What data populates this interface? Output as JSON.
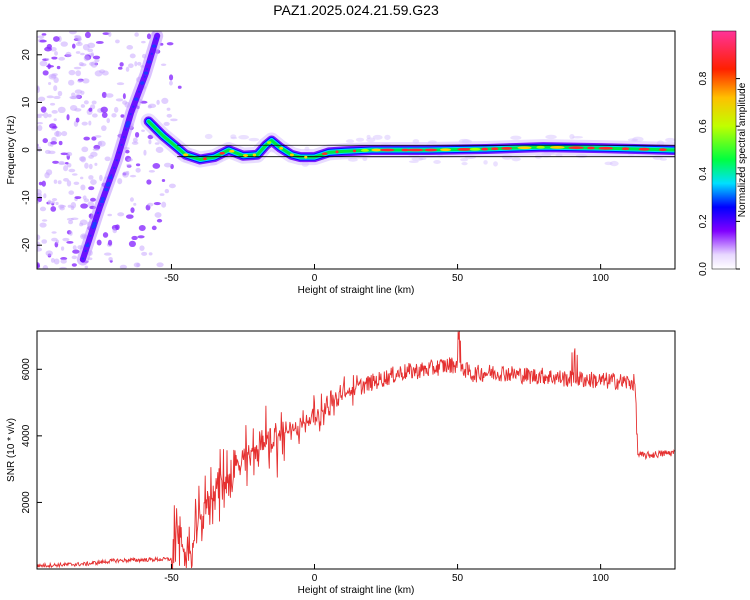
{
  "chart_data": [
    {
      "type": "heatmap",
      "title": "PAZ1.2025.024.21.59.G23",
      "xlabel": "Height of straight line (km)",
      "ylabel": "Frequency (Hz)",
      "xlim": [
        -97,
        126
      ],
      "ylim": [
        -25,
        25
      ],
      "xticks": [
        -50,
        0,
        50,
        100
      ],
      "yticks": [
        -20,
        -10,
        0,
        10,
        20
      ],
      "colorbar": {
        "label": "Normalized spectral amplitude",
        "range": [
          0,
          1
        ],
        "ticks": [
          "0.0",
          "0.2",
          "0.4",
          "0.6",
          "0.8"
        ],
        "colormap": "rainbow"
      },
      "traces": [
        {
          "description": "steep low-altitude trace",
          "points": [
            [
              -81,
              -23
            ],
            [
              -75,
              -12
            ],
            [
              -69,
              -2
            ],
            [
              -64,
              8
            ],
            [
              -59,
              16
            ],
            [
              -55,
              24
            ]
          ]
        },
        {
          "description": "main signal near 0 Hz",
          "points": [
            [
              -58,
              6
            ],
            [
              -53,
              3
            ],
            [
              -49,
              1
            ],
            [
              -45,
              -1
            ],
            [
              -40,
              -2
            ],
            [
              -35,
              -1.5
            ],
            [
              -30,
              0
            ],
            [
              -25,
              -1.2
            ],
            [
              -20,
              -1
            ],
            [
              -17,
              1
            ],
            [
              -15,
              2
            ],
            [
              -12,
              0.5
            ],
            [
              -8,
              -1
            ],
            [
              -5,
              -1.5
            ],
            [
              0,
              -1.5
            ],
            [
              5,
              -0.5
            ],
            [
              10,
              -0.3
            ],
            [
              20,
              0
            ],
            [
              40,
              0
            ],
            [
              60,
              0.2
            ],
            [
              80,
              0.6
            ],
            [
              100,
              0.4
            ],
            [
              126,
              0
            ]
          ]
        }
      ]
    },
    {
      "type": "line",
      "xlabel": "Height of straight line (km)",
      "ylabel": "SNR (10 * v/v)",
      "xlim": [
        -97,
        126
      ],
      "ylim": [
        0,
        7150
      ],
      "xticks": [
        -50,
        0,
        50,
        100
      ],
      "yticks": [
        2000,
        4000,
        6000
      ],
      "color": "#e53030",
      "envelope": [
        [
          -97,
          100
        ],
        [
          -80,
          150
        ],
        [
          -70,
          250
        ],
        [
          -50,
          300
        ],
        [
          -48,
          1200
        ],
        [
          -46,
          700
        ],
        [
          -44,
          200
        ],
        [
          -40,
          1500
        ],
        [
          -35,
          2400
        ],
        [
          -30,
          2800
        ],
        [
          -25,
          3200
        ],
        [
          -20,
          3700
        ],
        [
          -15,
          3900
        ],
        [
          -10,
          4100
        ],
        [
          -5,
          4300
        ],
        [
          0,
          4600
        ],
        [
          5,
          4900
        ],
        [
          10,
          5200
        ],
        [
          15,
          5450
        ],
        [
          20,
          5600
        ],
        [
          25,
          5750
        ],
        [
          30,
          5900
        ],
        [
          35,
          5950
        ],
        [
          40,
          6000
        ],
        [
          45,
          6100
        ],
        [
          50,
          6150
        ],
        [
          55,
          5850
        ],
        [
          60,
          5900
        ],
        [
          65,
          5900
        ],
        [
          70,
          5850
        ],
        [
          75,
          5800
        ],
        [
          80,
          5800
        ],
        [
          85,
          5750
        ],
        [
          90,
          5700
        ],
        [
          95,
          5700
        ],
        [
          100,
          5650
        ],
        [
          105,
          5650
        ],
        [
          110,
          5600
        ],
        [
          112,
          5600
        ],
        [
          113,
          3450
        ],
        [
          115,
          3400
        ],
        [
          120,
          3450
        ],
        [
          126,
          3500
        ]
      ]
    }
  ]
}
